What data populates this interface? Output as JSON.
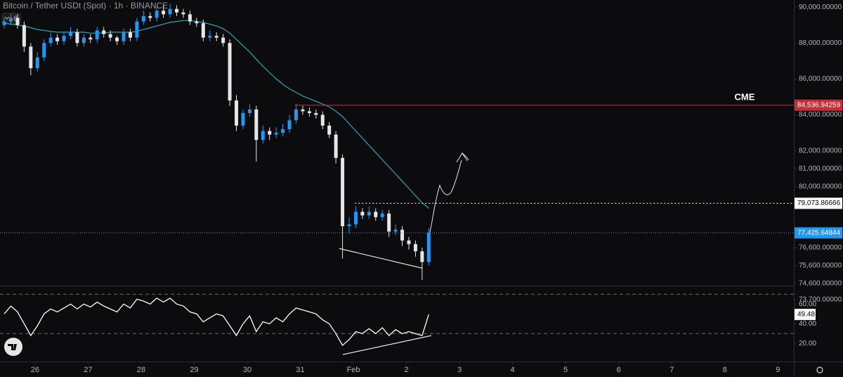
{
  "chart_data": [
    {
      "type": "candlestick",
      "title": "Bitcoin / Tether USDt (Spot) · 1h · BINANCE",
      "indicator_count": "6",
      "x": [
        25.42,
        25.545,
        25.67,
        25.795,
        25.92,
        26.045,
        26.17,
        26.295,
        26.42,
        26.545,
        26.67,
        26.795,
        26.92,
        27.045,
        27.17,
        27.295,
        27.42,
        27.545,
        27.67,
        27.795,
        27.92,
        28.045,
        28.17,
        28.295,
        28.42,
        28.545,
        28.67,
        28.795,
        28.92,
        29.045,
        29.17,
        29.295,
        29.42,
        29.545,
        29.67,
        29.795,
        29.92,
        30.045,
        30.17,
        30.295,
        30.42,
        30.545,
        30.67,
        30.795,
        30.92,
        31.045,
        31.17,
        31.295,
        31.42,
        31.545,
        31.67,
        31.795,
        31.92,
        32.045,
        32.17,
        32.295,
        32.42,
        32.545,
        32.67,
        32.795,
        32.92,
        33.045,
        33.17,
        33.295,
        33.42
      ],
      "open": [
        89000,
        89200,
        89400,
        89000,
        87800,
        86600,
        87200,
        88000,
        88300,
        88100,
        88400,
        88600,
        88000,
        88300,
        88200,
        88700,
        88500,
        88300,
        88100,
        88600,
        88300,
        89200,
        89500,
        89400,
        89800,
        89600,
        89900,
        89700,
        89600,
        89200,
        89100,
        88300,
        88400,
        88300,
        88000,
        84800,
        83400,
        84100,
        84300,
        82600,
        83100,
        82900,
        83000,
        83200,
        83700,
        84300,
        84200,
        84100,
        84000,
        83400,
        82900,
        81600,
        77800,
        77900,
        78600,
        78400,
        78600,
        78300,
        78500,
        77500,
        77600,
        77000,
        76800,
        76400,
        75800
      ],
      "high": [
        89400,
        89600,
        89600,
        89200,
        88000,
        87500,
        88200,
        88600,
        88500,
        88600,
        88900,
        88800,
        88500,
        88500,
        88900,
        88900,
        88700,
        88400,
        88800,
        88800,
        89400,
        89800,
        89700,
        90000,
        90100,
        90200,
        90100,
        89900,
        89800,
        89400,
        89300,
        88700,
        88600,
        88500,
        88200,
        85100,
        84300,
        84600,
        84500,
        83400,
        83300,
        83300,
        83500,
        84000,
        84600,
        84500,
        84400,
        84300,
        84200,
        83600,
        83100,
        81800,
        78300,
        78900,
        78800,
        78900,
        78800,
        78700,
        78700,
        77900,
        77800,
        77200,
        77000,
        76600,
        77700
      ],
      "low": [
        88800,
        89000,
        88800,
        87500,
        86200,
        86400,
        87000,
        87800,
        87900,
        87900,
        88200,
        87800,
        87800,
        88000,
        88000,
        88300,
        88100,
        87900,
        87900,
        88100,
        88100,
        89000,
        89200,
        89200,
        89400,
        89400,
        89500,
        89400,
        89000,
        88900,
        88100,
        88100,
        88100,
        87800,
        84500,
        83100,
        83200,
        83900,
        81400,
        82400,
        82600,
        82700,
        82800,
        83000,
        83500,
        84000,
        83900,
        83800,
        83200,
        82700,
        81300,
        76000,
        77400,
        77700,
        78200,
        78200,
        78100,
        78100,
        77200,
        77300,
        76700,
        76500,
        76100,
        74800,
        75600
      ],
      "close": [
        89200,
        89400,
        89000,
        87800,
        86600,
        87200,
        88000,
        88300,
        88100,
        88400,
        88600,
        88000,
        88300,
        88200,
        88700,
        88500,
        88300,
        88100,
        88600,
        88300,
        89200,
        89500,
        89400,
        89800,
        89600,
        89900,
        89700,
        89600,
        89200,
        89100,
        88300,
        88400,
        88300,
        88000,
        84800,
        83400,
        84100,
        84300,
        82600,
        83100,
        82900,
        83000,
        83200,
        83700,
        84300,
        84200,
        84100,
        84000,
        83400,
        82900,
        81600,
        77800,
        77900,
        78600,
        78400,
        78600,
        78300,
        78500,
        77500,
        77600,
        77000,
        76800,
        76400,
        75800,
        77425.64844
      ],
      "up_color": "#2196f3",
      "down_color": "#e6e6e6",
      "ma": {
        "color": "#26a6b8",
        "values": [
          89100,
          89050,
          89000,
          88950,
          88850,
          88750,
          88700,
          88650,
          88600,
          88600,
          88600,
          88600,
          88600,
          88550,
          88550,
          88550,
          88600,
          88600,
          88600,
          88600,
          88650,
          88750,
          88850,
          88950,
          89050,
          89150,
          89200,
          89250,
          89250,
          89200,
          89150,
          89050,
          88950,
          88800,
          88550,
          88200,
          87850,
          87500,
          87100,
          86700,
          86350,
          86000,
          85700,
          85450,
          85250,
          85050,
          84900,
          84750,
          84600,
          84450,
          84200,
          83900,
          83500,
          83100,
          82700,
          82300,
          81900,
          81500,
          81100,
          80700,
          80300,
          79900,
          79500,
          79100,
          78800
        ]
      },
      "xlim": [
        25.34,
        40.3
      ],
      "xticks": [
        26,
        27,
        28,
        29,
        30,
        31,
        {
          "value": 32,
          "label": "Feb"
        },
        {
          "value": 33,
          "label": "2"
        },
        {
          "value": 34,
          "label": "3"
        },
        {
          "value": 35,
          "label": "4"
        },
        {
          "value": 36,
          "label": "5"
        },
        {
          "value": 37,
          "label": "6"
        },
        {
          "value": 38,
          "label": "7"
        },
        {
          "value": 39,
          "label": "8"
        },
        {
          "value": 40,
          "label": "9"
        }
      ],
      "ylim": [
        73700,
        90200
      ],
      "yticks": [
        {
          "value": 90000,
          "label": "90,000.00000"
        },
        {
          "value": 88000,
          "label": "88,000.00000"
        },
        {
          "value": 86000,
          "label": "86,000.00000"
        },
        {
          "value": 84000,
          "label": "84,000.00000"
        },
        {
          "value": 82000,
          "label": "82,000.00000"
        },
        {
          "value": 81000,
          "label": "81,000.00000"
        },
        {
          "value": 80000,
          "label": "80,000.00000"
        },
        {
          "value": 76600,
          "label": "76,600.00000"
        },
        {
          "value": 75600,
          "label": "75,600.00000"
        },
        {
          "value": 74600,
          "label": "74,600.00000"
        },
        {
          "value": 73700,
          "label": "73,700.00000"
        }
      ],
      "price_lines": [
        {
          "value": 84536.94259,
          "label": "84,536.94259",
          "color": "#c62f38",
          "text": "CME",
          "from_x": 30.9
        },
        {
          "value": 79073.86666,
          "label": "79,073.86666",
          "color": "#ffffff",
          "from_x": 32.03
        },
        {
          "value": 77425.64844,
          "label": "77,425.64844",
          "color": "#2196f3"
        }
      ]
    },
    {
      "type": "line",
      "color": "#ffffff",
      "x": [
        25.42,
        25.545,
        25.67,
        25.795,
        25.92,
        26.045,
        26.17,
        26.295,
        26.42,
        26.545,
        26.67,
        26.795,
        26.92,
        27.045,
        27.17,
        27.295,
        27.42,
        27.545,
        27.67,
        27.795,
        27.92,
        28.045,
        28.17,
        28.295,
        28.42,
        28.545,
        28.67,
        28.795,
        28.92,
        29.045,
        29.17,
        29.295,
        29.42,
        29.545,
        29.67,
        29.795,
        29.92,
        30.045,
        30.17,
        30.295,
        30.42,
        30.545,
        30.67,
        30.795,
        30.92,
        31.045,
        31.17,
        31.295,
        31.42,
        31.545,
        31.67,
        31.795,
        31.92,
        32.045,
        32.17,
        32.295,
        32.42,
        32.545,
        32.67,
        32.795,
        32.92,
        33.045,
        33.17,
        33.295,
        33.42
      ],
      "values": [
        50,
        58,
        52,
        40,
        28,
        38,
        50,
        55,
        52,
        56,
        60,
        55,
        60,
        57,
        62,
        58,
        55,
        52,
        60,
        56,
        65,
        63,
        60,
        66,
        62,
        66,
        60,
        58,
        52,
        50,
        42,
        46,
        50,
        48,
        38,
        28,
        40,
        48,
        32,
        42,
        40,
        46,
        42,
        50,
        56,
        54,
        52,
        50,
        44,
        40,
        30,
        18,
        24,
        32,
        30,
        35,
        30,
        36,
        28,
        34,
        30,
        32,
        30,
        28,
        49.48
      ],
      "levels": [
        30,
        70
      ],
      "ylim": [
        13,
        76.5
      ],
      "yticks": [
        {
          "value": 60,
          "label": "60.00"
        },
        {
          "value": 40,
          "label": "40.00"
        },
        {
          "value": 20,
          "label": "20.00"
        }
      ]
    }
  ]
}
